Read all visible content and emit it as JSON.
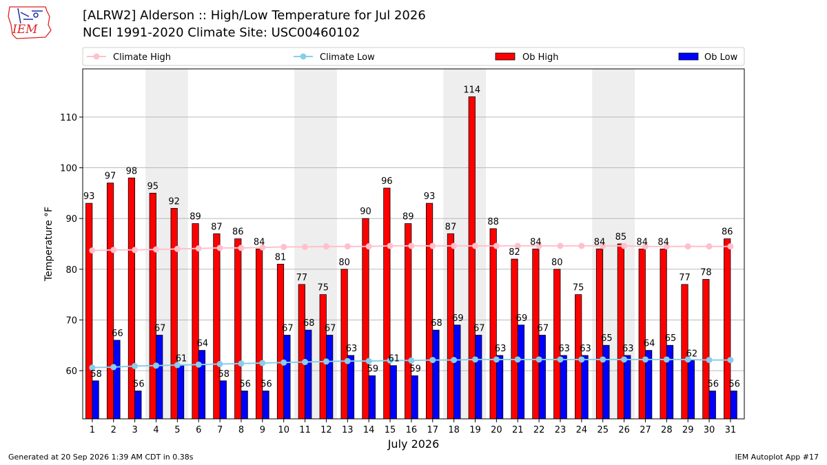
{
  "title_line1": "[ALRW2] Alderson :: High/Low Temperature for Jul 2026",
  "title_line2": "NCEI 1991-2020 Climate Site: USC00460102",
  "logo_text": "IEM",
  "footer_left": "Generated at 20 Sep 2026 1:39 AM CDT in 0.38s",
  "footer_right": "IEM Autoplot App #17",
  "colors": {
    "ob_high": "#ff0000",
    "ob_low": "#0000ff",
    "climate_high": "#ffc0cb",
    "climate_low": "#87ceeb",
    "weekend_shade": "#eeeeee",
    "grid": "#b0b0b0"
  },
  "chart_data": {
    "type": "bar",
    "xlabel": "July 2026",
    "ylabel": "Temperature °F",
    "ylim": [
      50.5,
      119.5
    ],
    "yticks": [
      60,
      70,
      80,
      90,
      100,
      110
    ],
    "categories": [
      "1",
      "2",
      "3",
      "4",
      "5",
      "6",
      "7",
      "8",
      "9",
      "10",
      "11",
      "12",
      "13",
      "14",
      "15",
      "16",
      "17",
      "18",
      "19",
      "20",
      "21",
      "22",
      "23",
      "24",
      "25",
      "26",
      "27",
      "28",
      "29",
      "30",
      "31"
    ],
    "shaded_days": [
      4,
      5,
      11,
      12,
      18,
      19,
      25,
      26
    ],
    "grid": true,
    "legend_position": "top",
    "series": [
      {
        "name": "Ob High",
        "kind": "bar",
        "values": [
          93,
          97,
          98,
          95,
          92,
          89,
          87,
          86,
          84,
          81,
          77,
          75,
          80,
          90,
          96,
          89,
          93,
          87,
          114,
          88,
          82,
          84,
          80,
          75,
          84,
          85,
          84,
          84,
          77,
          78,
          86
        ]
      },
      {
        "name": "Ob Low",
        "kind": "bar",
        "values": [
          58,
          66,
          56,
          67,
          61,
          64,
          58,
          56,
          56,
          67,
          68,
          67,
          63,
          59,
          61,
          59,
          68,
          69,
          67,
          63,
          69,
          67,
          63,
          63,
          65,
          63,
          64,
          65,
          62,
          56,
          56
        ]
      },
      {
        "name": "Climate High",
        "kind": "line",
        "values": [
          83.7,
          83.8,
          83.8,
          83.9,
          84.0,
          84.1,
          84.2,
          84.2,
          84.3,
          84.4,
          84.4,
          84.5,
          84.5,
          84.5,
          84.6,
          84.6,
          84.6,
          84.6,
          84.6,
          84.6,
          84.6,
          84.6,
          84.6,
          84.6,
          84.6,
          84.6,
          84.5,
          84.5,
          84.5,
          84.5,
          84.5
        ]
      },
      {
        "name": "Climate Low",
        "kind": "line",
        "values": [
          60.6,
          60.7,
          60.9,
          61.0,
          61.1,
          61.2,
          61.3,
          61.4,
          61.5,
          61.6,
          61.7,
          61.8,
          61.9,
          61.9,
          62.0,
          62.0,
          62.1,
          62.1,
          62.2,
          62.2,
          62.2,
          62.2,
          62.2,
          62.2,
          62.2,
          62.2,
          62.2,
          62.2,
          62.2,
          62.1,
          62.1
        ]
      }
    ]
  }
}
